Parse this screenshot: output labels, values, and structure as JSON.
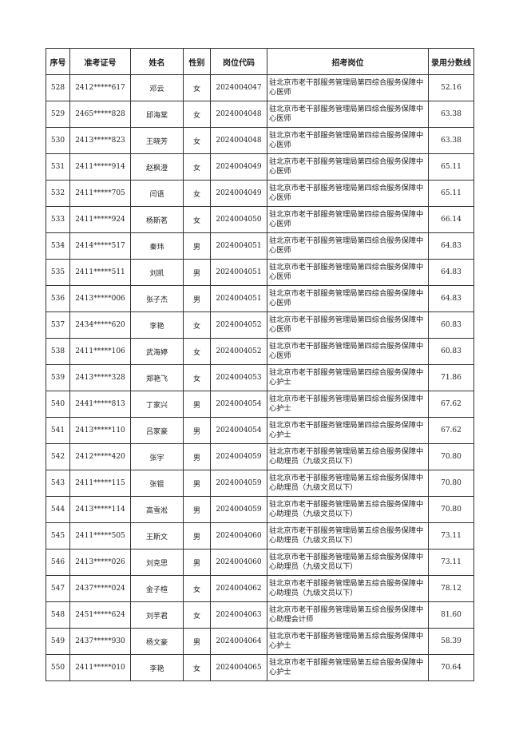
{
  "headers": [
    "序号",
    "准考证号",
    "姓名",
    "性别",
    "岗位代码",
    "招考岗位",
    "录用分数线"
  ],
  "rows": [
    [
      "528",
      "2412*****617",
      "邓云",
      "女",
      "2024004047",
      "驻北京市老干部服务管理局第四综合服务保障中心医师",
      "52.16"
    ],
    [
      "529",
      "2465*****828",
      "邱海棠",
      "女",
      "2024004048",
      "驻北京市老干部服务管理局第四综合服务保障中心医师",
      "63.38"
    ],
    [
      "530",
      "2413*****823",
      "王晓芳",
      "女",
      "2024004048",
      "驻北京市老干部服务管理局第四综合服务保障中心医师",
      "63.38"
    ],
    [
      "531",
      "2411*****914",
      "赵枫澄",
      "女",
      "2024004049",
      "驻北京市老干部服务管理局第四综合服务保障中心医师",
      "65.11"
    ],
    [
      "532",
      "2411*****705",
      "闫语",
      "女",
      "2024004049",
      "驻北京市老干部服务管理局第四综合服务保障中心医师",
      "65.11"
    ],
    [
      "533",
      "2411*****924",
      "杨斯茗",
      "女",
      "2024004050",
      "驻北京市老干部服务管理局第四综合服务保障中心医师",
      "66.14"
    ],
    [
      "534",
      "2414*****517",
      "秦玮",
      "男",
      "2024004051",
      "驻北京市老干部服务管理局第四综合服务保障中心医师",
      "64.83"
    ],
    [
      "535",
      "2411*****511",
      "刘凯",
      "男",
      "2024004051",
      "驻北京市老干部服务管理局第四综合服务保障中心医师",
      "64.83"
    ],
    [
      "536",
      "2413*****006",
      "张子杰",
      "男",
      "2024004051",
      "驻北京市老干部服务管理局第四综合服务保障中心医师",
      "64.83"
    ],
    [
      "537",
      "2434*****620",
      "李艳",
      "女",
      "2024004052",
      "驻北京市老干部服务管理局第四综合服务保障中心医师",
      "60.83"
    ],
    [
      "538",
      "2411*****106",
      "武海婷",
      "女",
      "2024004052",
      "驻北京市老干部服务管理局第四综合服务保障中心医师",
      "60.83"
    ],
    [
      "539",
      "2413*****328",
      "郑艳飞",
      "女",
      "2024004053",
      "驻北京市老干部服务管理局第四综合服务保障中心护士",
      "71.86"
    ],
    [
      "540",
      "2441*****813",
      "丁家兴",
      "男",
      "2024004054",
      "驻北京市老干部服务管理局第四综合服务保障中心护士",
      "67.62"
    ],
    [
      "541",
      "2413*****110",
      "吕家豪",
      "男",
      "2024004054",
      "驻北京市老干部服务管理局第四综合服务保障中心护士",
      "67.62"
    ],
    [
      "542",
      "2412*****420",
      "张宇",
      "男",
      "2024004059",
      "驻北京市老干部服务管理局第五综合服务保障中心助理员（九级文员以下）",
      "70.80"
    ],
    [
      "543",
      "2411*****115",
      "张锟",
      "男",
      "2024004059",
      "驻北京市老干部服务管理局第五综合服务保障中心助理员（九级文员以下）",
      "70.80"
    ],
    [
      "544",
      "2413*****114",
      "高雪淞",
      "男",
      "2024004059",
      "驻北京市老干部服务管理局第五综合服务保障中心助理员（九级文员以下）",
      "70.80"
    ],
    [
      "545",
      "2411*****505",
      "王斯文",
      "男",
      "2024004060",
      "驻北京市老干部服务管理局第五综合服务保障中心助理员（九级文员以下）",
      "73.11"
    ],
    [
      "546",
      "2413*****026",
      "刘克思",
      "男",
      "2024004060",
      "驻北京市老干部服务管理局第五综合服务保障中心助理员（九级文员以下）",
      "73.11"
    ],
    [
      "547",
      "2437*****024",
      "金子楦",
      "女",
      "2024004062",
      "驻北京市老干部服务管理局第五综合服务保障中心助理员（九级文员以下）",
      "78.12"
    ],
    [
      "548",
      "2451*****624",
      "刘芋君",
      "女",
      "2024004063",
      "驻北京市老干部服务管理局第五综合服务保障中心助理会计师",
      "81.60"
    ],
    [
      "549",
      "2437*****930",
      "杨文豪",
      "男",
      "2024004064",
      "驻北京市老干部服务管理局第五综合服务保障中心护士",
      "58.39"
    ],
    [
      "550",
      "2411*****010",
      "李艳",
      "女",
      "2024004065",
      "驻北京市老干部服务管理局第五综合服务保障中心护士",
      "70.64"
    ]
  ]
}
